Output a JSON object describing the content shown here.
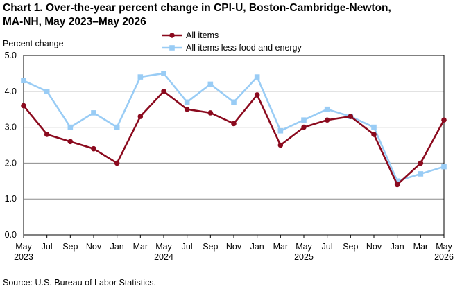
{
  "chart_data": {
    "type": "line",
    "title_line1": "Chart 1. Over-the-year percent change in CPI-U, Boston-Cambridge-Newton,",
    "title_line2": "MA-NH, May 2023–May 2026",
    "ylabel": "Percent change",
    "xlabel": "",
    "ylim": [
      0,
      5
    ],
    "yticks": [
      "0.0",
      "1.0",
      "2.0",
      "3.0",
      "4.0",
      "5.0"
    ],
    "grid": true,
    "legend_position": "top-center",
    "x_labels": [
      {
        "month": "May",
        "year": "2023"
      },
      {
        "month": "Jul",
        "year": ""
      },
      {
        "month": "Sep",
        "year": ""
      },
      {
        "month": "Nov",
        "year": ""
      },
      {
        "month": "Jan",
        "year": ""
      },
      {
        "month": "Mar",
        "year": ""
      },
      {
        "month": "May",
        "year": "2024"
      },
      {
        "month": "Jul",
        "year": ""
      },
      {
        "month": "Sep",
        "year": ""
      },
      {
        "month": "Nov",
        "year": ""
      },
      {
        "month": "Jan",
        "year": ""
      },
      {
        "month": "Mar",
        "year": ""
      },
      {
        "month": "May",
        "year": "2025"
      },
      {
        "month": "Jul",
        "year": ""
      },
      {
        "month": "Sep",
        "year": ""
      },
      {
        "month": "Nov",
        "year": ""
      },
      {
        "month": "Jan",
        "year": ""
      },
      {
        "month": "Mar",
        "year": ""
      },
      {
        "month": "May",
        "year": "2026"
      }
    ],
    "series": [
      {
        "name": "All items",
        "color": "#8b0a1e",
        "marker": "circle",
        "values": [
          3.6,
          2.8,
          2.6,
          2.4,
          2.0,
          3.3,
          4.0,
          3.5,
          3.4,
          3.1,
          3.9,
          2.5,
          3.0,
          3.2,
          3.3,
          2.8,
          1.4,
          2.0,
          3.2
        ]
      },
      {
        "name": "All items less food and energy",
        "color": "#99ccf5",
        "marker": "square",
        "values": [
          4.3,
          4.0,
          3.0,
          3.4,
          3.0,
          4.4,
          4.5,
          3.7,
          4.2,
          3.7,
          4.4,
          2.9,
          3.2,
          3.5,
          3.3,
          3.0,
          1.5,
          1.7,
          1.9
        ]
      }
    ],
    "source": "Source: U.S. Bureau of Labor Statistics."
  }
}
